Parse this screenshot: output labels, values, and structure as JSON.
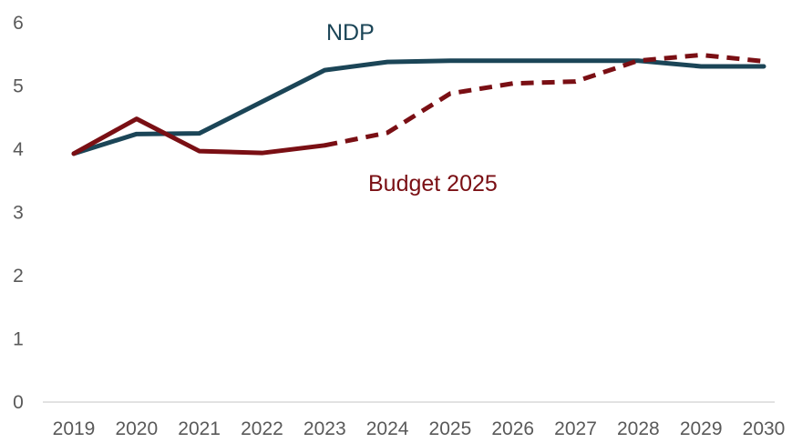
{
  "chart_data": {
    "type": "line",
    "title": "",
    "xlabel": "",
    "ylabel": "",
    "ylim": [
      0,
      6
    ],
    "y_ticks": [
      "0",
      "1",
      "2",
      "3",
      "4",
      "5",
      "6"
    ],
    "categories": [
      "2019",
      "2020",
      "2021",
      "2022",
      "2023",
      "2024",
      "2025",
      "2026",
      "2027",
      "2028",
      "2029",
      "2030"
    ],
    "grid": false,
    "legend": "none",
    "series": [
      {
        "name": "NDP",
        "color": "#1b4557",
        "style": "solid",
        "values": [
          3.93,
          4.24,
          4.25,
          4.75,
          5.25,
          5.38,
          5.4,
          5.4,
          5.4,
          5.4,
          5.31,
          5.31
        ]
      },
      {
        "name": "Budget 2025",
        "color": "#7a0f14",
        "style": "solid-then-dashed",
        "dashed_from": "2023",
        "values": [
          3.93,
          4.48,
          3.97,
          3.94,
          4.06,
          4.26,
          4.88,
          5.04,
          5.07,
          5.4,
          5.49,
          5.39
        ]
      }
    ]
  }
}
